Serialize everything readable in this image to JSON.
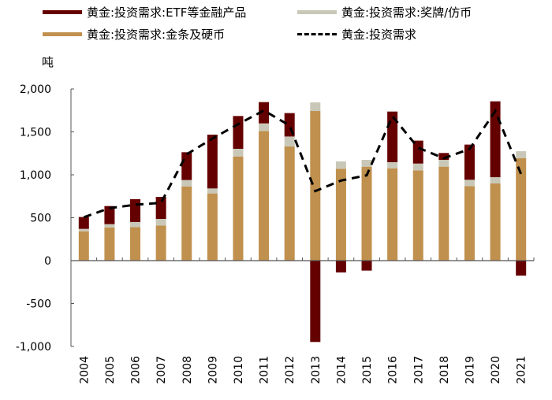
{
  "chart_data": {
    "type": "bar",
    "stacked": true,
    "unit_label": "吨",
    "categories": [
      "2004",
      "2005",
      "2006",
      "2007",
      "2008",
      "2009",
      "2010",
      "2011",
      "2012",
      "2013",
      "2014",
      "2015",
      "2016",
      "2017",
      "2018",
      "2019",
      "2020",
      "2021"
    ],
    "ylim": [
      -1000,
      2000
    ],
    "yticks": [
      -1000,
      -500,
      0,
      500,
      1000,
      1500,
      2000
    ],
    "ytick_labels": [
      "-1,000",
      "-500",
      "0",
      "500",
      "1,000",
      "1,500",
      "2,000"
    ],
    "grid": false,
    "legend_position": "top",
    "series": [
      {
        "name": "黄金:投资需求:金条及硬币",
        "kind": "bar",
        "color": "#c0904e",
        "values": [
          342,
          385,
          391,
          410,
          865,
          783,
          1214,
          1511,
          1330,
          1743,
          1070,
          1095,
          1076,
          1052,
          1095,
          869,
          899,
          1193
        ]
      },
      {
        "name": "黄金:投资需求:奖牌/仿币",
        "kind": "bar",
        "color": "#c9c8b8",
        "values": [
          28,
          40,
          59,
          76,
          74,
          58,
          89,
          88,
          116,
          101,
          86,
          79,
          71,
          79,
          79,
          73,
          73,
          82
        ]
      },
      {
        "name": "黄金:投资需求:ETF等金融产品",
        "kind": "bar",
        "color": "#650000",
        "values": [
          138,
          211,
          266,
          257,
          324,
          627,
          382,
          248,
          273,
          -948,
          -138,
          -116,
          590,
          267,
          80,
          410,
          884,
          -174
        ]
      },
      {
        "name": "黄金:投资需求",
        "kind": "line",
        "style": "dashed",
        "color": "#000000",
        "values": [
          505,
          612,
          651,
          673,
          1239,
          1422,
          1590,
          1749,
          1575,
          810,
          933,
          994,
          1682,
          1315,
          1193,
          1300,
          1743,
          1009
        ]
      }
    ]
  }
}
